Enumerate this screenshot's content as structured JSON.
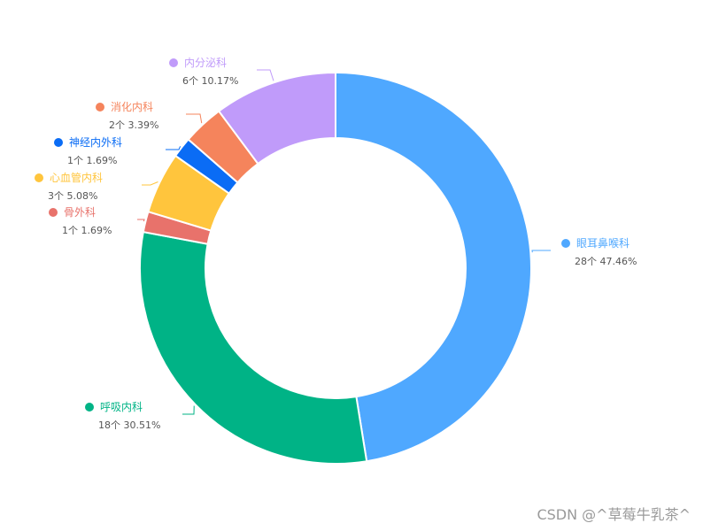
{
  "chart_data": {
    "type": "pie",
    "title": "",
    "inner_radius_ratio": 0.665,
    "slices": [
      {
        "name": "眼耳鼻喉科",
        "count": 28,
        "count_text": "28个",
        "percent_text": "47.46%",
        "color": "#4fa8ff"
      },
      {
        "name": "呼吸内科",
        "count": 18,
        "count_text": "18个",
        "percent_text": "30.51%",
        "color": "#00b386"
      },
      {
        "name": "骨外科",
        "count": 1,
        "count_text": "1个",
        "percent_text": "1.69%",
        "color": "#e8726b"
      },
      {
        "name": "心血管内科",
        "count": 3,
        "count_text": "3个",
        "percent_text": "5.08%",
        "color": "#ffc53d"
      },
      {
        "name": "神经内外科",
        "count": 1,
        "count_text": "1个",
        "percent_text": "1.69%",
        "color": "#0a6cf5"
      },
      {
        "name": "消化内科",
        "count": 2,
        "count_text": "2个",
        "percent_text": "3.39%",
        "color": "#f5845c"
      },
      {
        "name": "内分泌科",
        "count": 6,
        "count_text": "6个",
        "percent_text": "10.17%",
        "color": "#c09bfa"
      }
    ]
  },
  "watermark": "CSDN @^草莓牛乳茶^"
}
